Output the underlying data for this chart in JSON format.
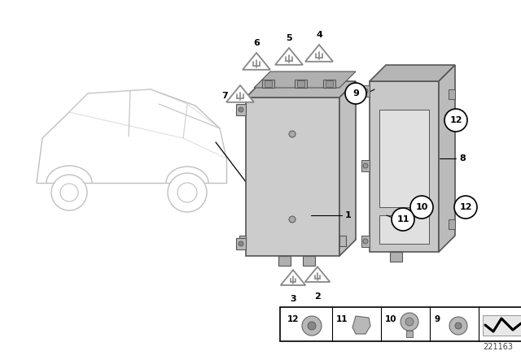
{
  "bg_color": "#ffffff",
  "part_number": "221163",
  "gray_light": "#d0d0d0",
  "gray_mid": "#b8b8b8",
  "gray_dark": "#888888",
  "edge_color": "#555555",
  "car_color": "#cccccc",
  "label_color": "#000000"
}
